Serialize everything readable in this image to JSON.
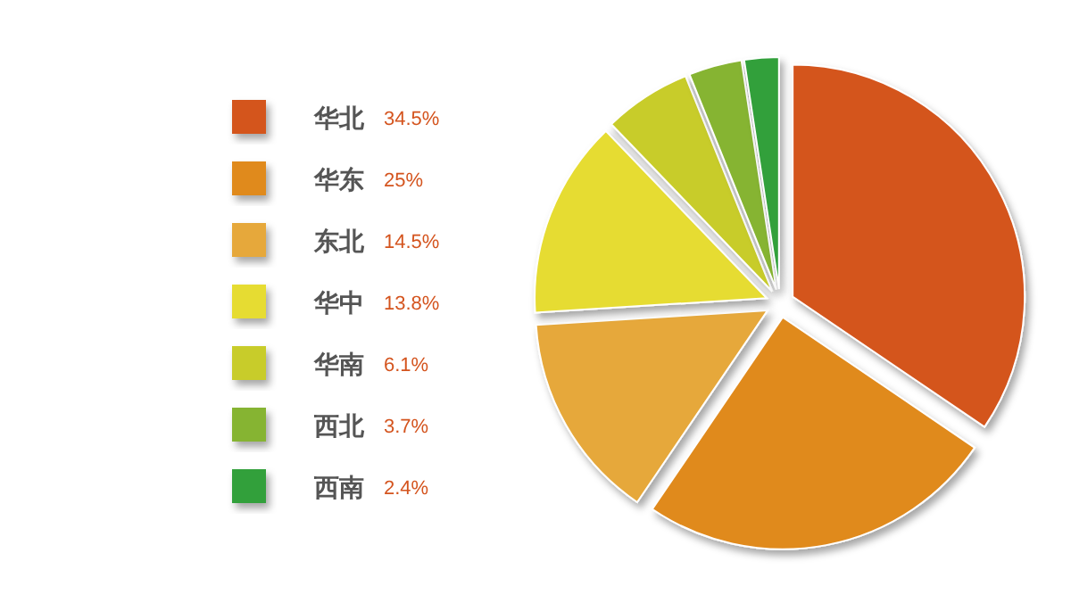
{
  "chart_data": {
    "type": "pie",
    "categories": [
      "华北",
      "华东",
      "东北",
      "华中",
      "华南",
      "西北",
      "西南"
    ],
    "values": [
      34.5,
      25,
      14.5,
      13.8,
      6.1,
      3.7,
      2.4
    ],
    "colors": [
      "#d4541e",
      "#e08a1e",
      "#e6a83a",
      "#e6dc32",
      "#c8cc2a",
      "#86b432",
      "#30a03a"
    ],
    "value_labels": [
      "34.5%",
      "25%",
      "14.5%",
      "13.8%",
      "6.1%",
      "3.7%",
      "2.4%"
    ],
    "legend": "left"
  }
}
